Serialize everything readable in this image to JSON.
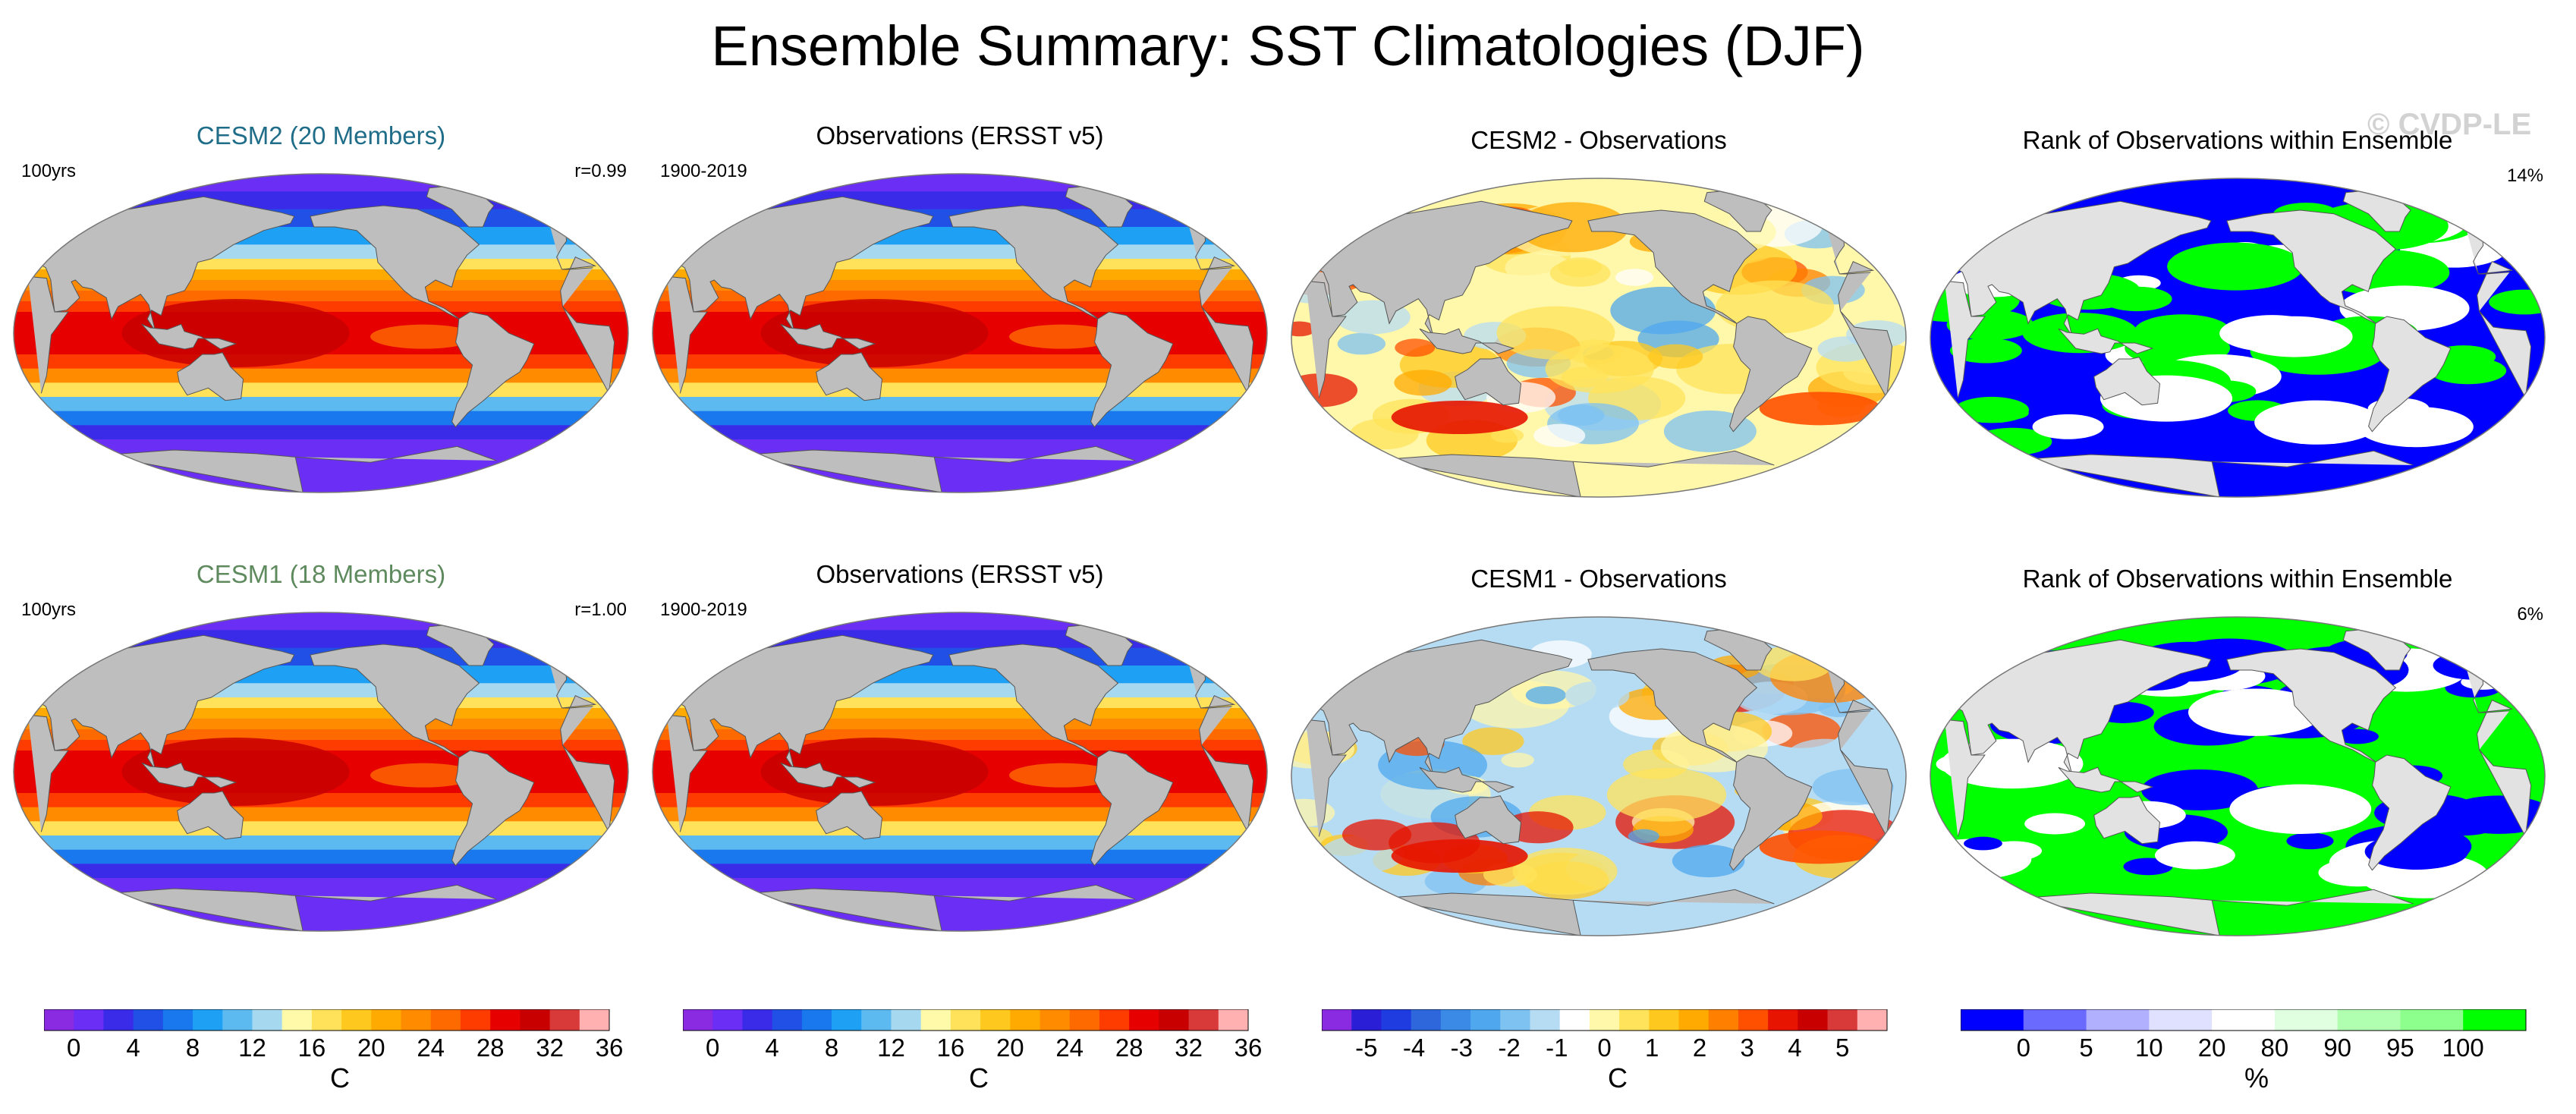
{
  "title": "Ensemble Summary: SST Climatologies (DJF)",
  "watermark": "© CVDP-LE",
  "colors": {
    "land": "#bebebe",
    "land_light": "#e2e2e2",
    "sst_scale": [
      "#8a2be2",
      "#6b2ef5",
      "#3a2be8",
      "#2050e6",
      "#1a78ee",
      "#1ea0f5",
      "#5cbaf0",
      "#a6d8f0",
      "#fffaaa",
      "#ffe25a",
      "#ffc81e",
      "#ffaa00",
      "#ff8c00",
      "#ff6a00",
      "#ff3c00",
      "#e60000",
      "#c80000",
      "#d83a3a",
      "#ffb0b0"
    ],
    "diff_scale": [
      "#8a2be2",
      "#2a1fd6",
      "#1f3ce0",
      "#2e66dc",
      "#3a8ae6",
      "#4fa8ee",
      "#7ec2f2",
      "#b6dcf4",
      "#ffffff",
      "#fff7aa",
      "#ffe35a",
      "#ffc81e",
      "#ffaa00",
      "#ff8000",
      "#ff5000",
      "#e61400",
      "#c80000",
      "#d83a3a",
      "#ffb0b0"
    ],
    "rank_scale": [
      "#0000ff",
      "#6a6aff",
      "#b0b0ff",
      "#e0e0ff",
      "#ffffff",
      "#e0ffe0",
      "#b0ffb0",
      "#8cff8c",
      "#00ff00"
    ]
  },
  "panels": [
    {
      "title": "CESM2 (20 Members)",
      "title_color": "#1f6d88",
      "left_label": "100yrs",
      "right_label": "r=0.99",
      "kind": "sst"
    },
    {
      "title": "Observations (ERSST v5)",
      "title_color": "#000000",
      "left_label": "1900-2019",
      "right_label": "",
      "kind": "sst"
    },
    {
      "title": "CESM2 - Observations",
      "title_color": "#000000",
      "left_label": "",
      "right_label": "",
      "kind": "diff"
    },
    {
      "title": "Rank of Observations within Ensemble",
      "title_color": "#000000",
      "left_label": "",
      "right_label": "14%",
      "kind": "rank"
    },
    {
      "title": "CESM1 (18 Members)",
      "title_color": "#5e8a5e",
      "left_label": "100yrs",
      "right_label": "r=1.00",
      "kind": "sst"
    },
    {
      "title": "Observations (ERSST v5)",
      "title_color": "#000000",
      "left_label": "1900-2019",
      "right_label": "",
      "kind": "sst"
    },
    {
      "title": "CESM1 - Observations",
      "title_color": "#000000",
      "left_label": "",
      "right_label": "",
      "kind": "diff"
    },
    {
      "title": "Rank of Observations within Ensemble",
      "title_color": "#000000",
      "left_label": "",
      "right_label": "6%",
      "kind": "rank"
    }
  ],
  "chart_data": [
    {
      "type": "heatmap",
      "title": "Ensemble Summary: SST Climatologies (DJF)",
      "description_panels": [
        "CESM2 (20 Members)",
        "Observations (ERSST v5)",
        "CESM2 - Observations",
        "Rank of Observations within Ensemble",
        "CESM1 (18 Members)",
        "Observations (ERSST v5)",
        "CESM1 - Observations",
        "Rank of Observations within Ensemble"
      ],
      "pattern_correlations": {
        "CESM2": 0.99,
        "CESM1": 1.0
      },
      "rank_summary_percent": {
        "CESM2": 14,
        "CESM1": 6
      }
    }
  ],
  "colorbars": [
    {
      "unit": "C",
      "tick_labels": [
        "0",
        "4",
        "8",
        "12",
        "16",
        "20",
        "24",
        "28",
        "32",
        "36"
      ],
      "n_colors": 19,
      "scale": "sst"
    },
    {
      "unit": "C",
      "tick_labels": [
        "0",
        "4",
        "8",
        "12",
        "16",
        "20",
        "24",
        "28",
        "32",
        "36"
      ],
      "n_colors": 19,
      "scale": "sst"
    },
    {
      "unit": "C",
      "tick_labels": [
        "-5",
        "-4",
        "-3",
        "-2",
        "-1",
        "0",
        "1",
        "2",
        "3",
        "4",
        "5"
      ],
      "n_colors": 19,
      "scale": "diff"
    },
    {
      "unit": "%",
      "tick_labels": [
        "0",
        "5",
        "10",
        "20",
        "80",
        "90",
        "95",
        "100"
      ],
      "n_colors": 9,
      "scale": "rank"
    }
  ]
}
